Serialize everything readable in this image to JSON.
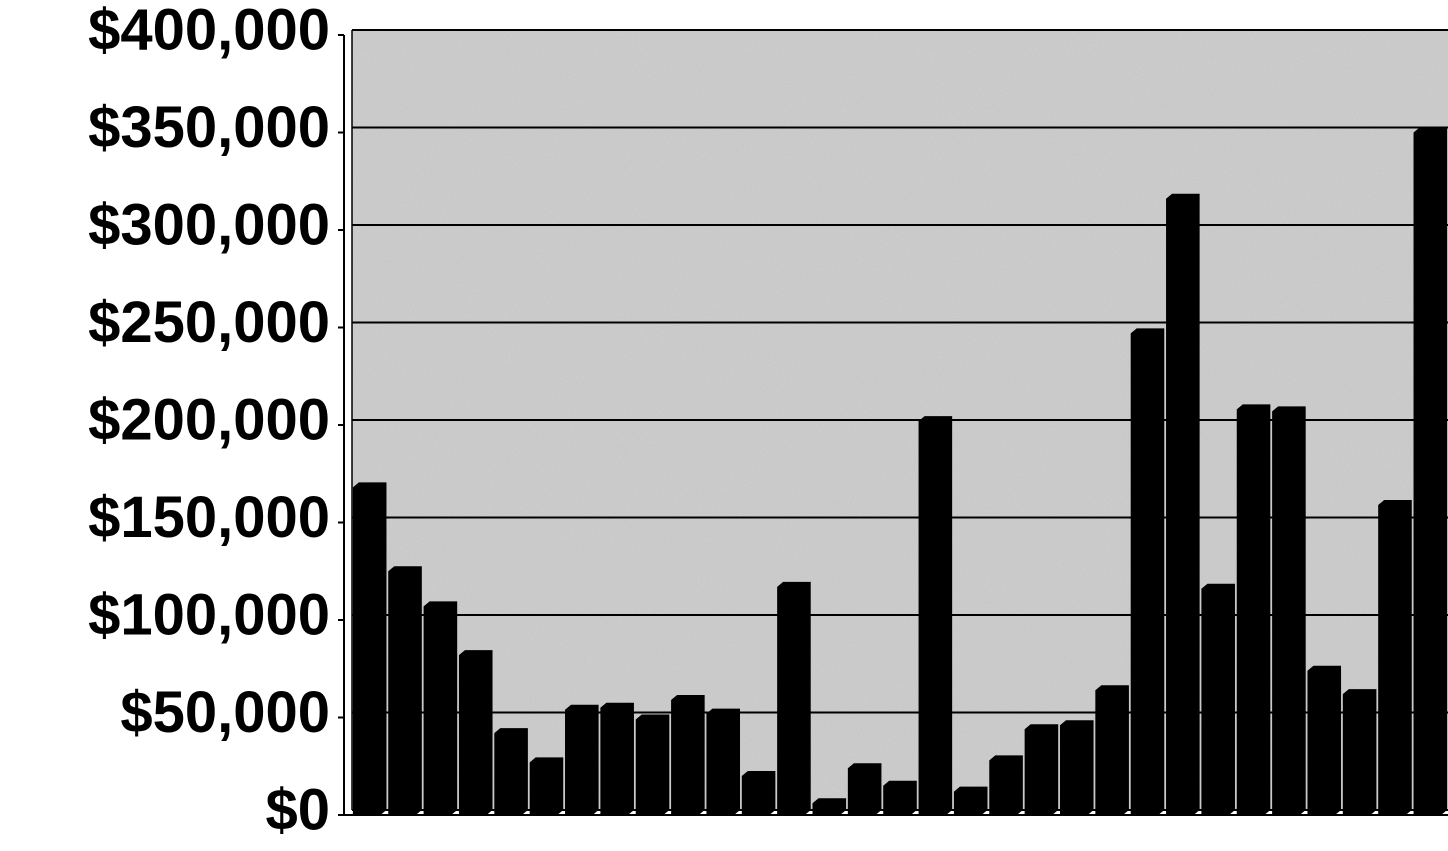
{
  "chart_data": {
    "type": "bar",
    "categories": [
      null,
      null,
      null,
      null,
      null,
      null,
      null,
      null,
      null,
      null,
      null,
      null,
      null,
      null,
      null,
      null,
      null,
      null,
      null,
      null,
      null,
      null,
      null,
      null,
      null,
      null,
      null,
      null,
      null,
      null,
      null
    ],
    "values": [
      168000,
      125000,
      107000,
      82000,
      42000,
      27000,
      54000,
      55000,
      49000,
      59000,
      52000,
      20000,
      117000,
      6000,
      24000,
      15000,
      202000,
      12000,
      28000,
      44000,
      46000,
      64000,
      247000,
      316000,
      116000,
      208000,
      207000,
      74000,
      62000,
      159000,
      350000
    ],
    "color": "#000000",
    "ylim": [
      0,
      400000
    ],
    "yticks": [
      {
        "value": 0,
        "label": "$0"
      },
      {
        "value": 50000,
        "label": "$50,000"
      },
      {
        "value": 100000,
        "label": "$100,000"
      },
      {
        "value": 150000,
        "label": "$150,000"
      },
      {
        "value": 200000,
        "label": "$200,000"
      },
      {
        "value": 250000,
        "label": "$250,000"
      },
      {
        "value": 300000,
        "label": "$300,000"
      },
      {
        "value": 350000,
        "label": "$350,000"
      },
      {
        "value": 400000,
        "label": "$400,000"
      }
    ],
    "grid": true
  }
}
